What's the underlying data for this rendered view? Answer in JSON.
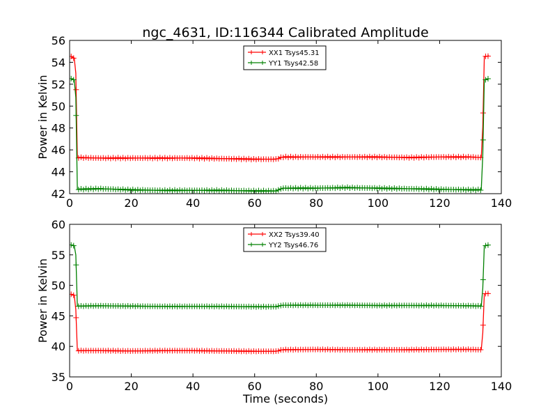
{
  "figure": {
    "title": "ngc_4631, ID:116344 Calibrated Amplitude"
  },
  "colors": {
    "xx": "#ff0000",
    "yy": "#008000",
    "axes": "#000000",
    "background": "#ffffff"
  },
  "chart_data": [
    {
      "type": "line",
      "title": "ngc_4631, ID:116344 Calibrated Amplitude",
      "xlabel": "",
      "ylabel": "Power in Kelvin",
      "xlim": [
        0,
        140
      ],
      "ylim": [
        42,
        56
      ],
      "xticks": [
        0,
        20,
        40,
        60,
        80,
        100,
        120,
        140
      ],
      "yticks": [
        42,
        44,
        46,
        48,
        50,
        52,
        54,
        56
      ],
      "grid": false,
      "legend_position": "top-center",
      "marker": "+",
      "series": [
        {
          "name": "XX1 Tsys45.31",
          "color": "#ff0000",
          "points": [
            [
              0.5,
              54.5
            ],
            [
              1.5,
              54.4
            ],
            [
              2.0,
              53.0
            ],
            [
              2.5,
              45.3
            ],
            [
              10,
              45.25
            ],
            [
              20,
              45.25
            ],
            [
              30,
              45.25
            ],
            [
              40,
              45.25
            ],
            [
              50,
              45.2
            ],
            [
              60,
              45.15
            ],
            [
              67,
              45.15
            ],
            [
              69,
              45.35
            ],
            [
              80,
              45.35
            ],
            [
              90,
              45.35
            ],
            [
              100,
              45.35
            ],
            [
              110,
              45.3
            ],
            [
              120,
              45.35
            ],
            [
              130,
              45.35
            ],
            [
              133.5,
              45.3
            ],
            [
              134.0,
              48.1
            ],
            [
              134.5,
              54.5
            ],
            [
              136,
              54.6
            ]
          ]
        },
        {
          "name": "YY1 Tsys42.58",
          "color": "#008000",
          "points": [
            [
              0.5,
              52.5
            ],
            [
              1.5,
              52.4
            ],
            [
              2.0,
              50.8
            ],
            [
              2.5,
              42.4
            ],
            [
              10,
              42.45
            ],
            [
              20,
              42.35
            ],
            [
              30,
              42.3
            ],
            [
              40,
              42.3
            ],
            [
              50,
              42.3
            ],
            [
              60,
              42.25
            ],
            [
              67,
              42.25
            ],
            [
              69,
              42.5
            ],
            [
              80,
              42.5
            ],
            [
              90,
              42.55
            ],
            [
              100,
              42.5
            ],
            [
              110,
              42.45
            ],
            [
              120,
              42.4
            ],
            [
              130,
              42.35
            ],
            [
              133.5,
              42.35
            ],
            [
              134.0,
              45.5
            ],
            [
              134.5,
              52.4
            ],
            [
              136,
              52.5
            ]
          ]
        }
      ]
    },
    {
      "type": "line",
      "title": "",
      "xlabel": "Time (seconds)",
      "ylabel": "Power in Kelvin",
      "xlim": [
        0,
        140
      ],
      "ylim": [
        35,
        60
      ],
      "xticks": [
        0,
        20,
        40,
        60,
        80,
        100,
        120,
        140
      ],
      "yticks": [
        35,
        40,
        45,
        50,
        55,
        60
      ],
      "grid": false,
      "legend_position": "top-center",
      "marker": "+",
      "series": [
        {
          "name": "XX2 Tsys39.40",
          "color": "#ff0000",
          "points": [
            [
              0.5,
              48.5
            ],
            [
              1.5,
              48.4
            ],
            [
              2.0,
              46.0
            ],
            [
              2.5,
              39.3
            ],
            [
              10,
              39.3
            ],
            [
              20,
              39.25
            ],
            [
              30,
              39.3
            ],
            [
              40,
              39.3
            ],
            [
              50,
              39.25
            ],
            [
              60,
              39.2
            ],
            [
              67,
              39.2
            ],
            [
              69,
              39.45
            ],
            [
              80,
              39.5
            ],
            [
              90,
              39.45
            ],
            [
              100,
              39.45
            ],
            [
              110,
              39.45
            ],
            [
              120,
              39.5
            ],
            [
              130,
              39.5
            ],
            [
              133.5,
              39.45
            ],
            [
              134.0,
              42.2
            ],
            [
              134.5,
              48.6
            ],
            [
              136,
              48.7
            ]
          ]
        },
        {
          "name": "YY2 Tsys46.76",
          "color": "#008000",
          "points": [
            [
              0.5,
              56.6
            ],
            [
              1.5,
              56.5
            ],
            [
              2.0,
              55.0
            ],
            [
              2.5,
              46.6
            ],
            [
              10,
              46.65
            ],
            [
              20,
              46.6
            ],
            [
              30,
              46.55
            ],
            [
              40,
              46.55
            ],
            [
              50,
              46.55
            ],
            [
              60,
              46.5
            ],
            [
              67,
              46.5
            ],
            [
              69,
              46.75
            ],
            [
              80,
              46.75
            ],
            [
              90,
              46.75
            ],
            [
              100,
              46.7
            ],
            [
              110,
              46.7
            ],
            [
              120,
              46.7
            ],
            [
              130,
              46.65
            ],
            [
              133.5,
              46.6
            ],
            [
              134.0,
              49.5
            ],
            [
              134.5,
              56.5
            ],
            [
              136,
              56.6
            ]
          ]
        }
      ]
    }
  ]
}
